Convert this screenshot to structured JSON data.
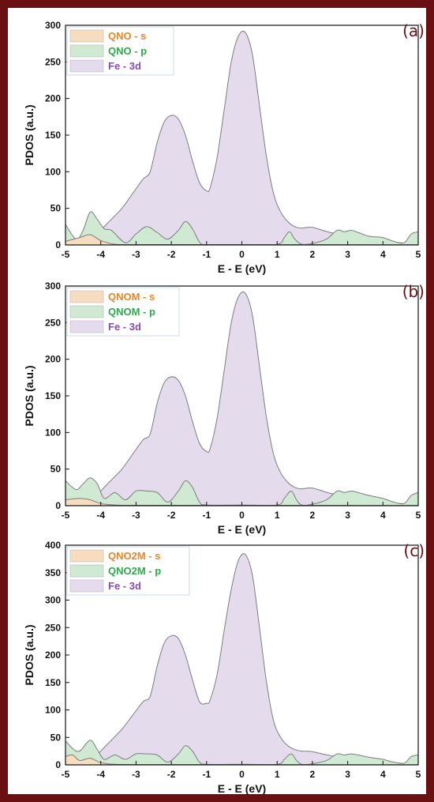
{
  "colors": {
    "frame": "#6a0f12",
    "s_fill": "#f7ddc0",
    "s_text": "#e8872a",
    "p_fill": "#cfe9d3",
    "p_text": "#2eaa4a",
    "d_fill": "#e4dcec",
    "d_text": "#8a4ab5",
    "stroke": "#7d7d7d"
  },
  "x_tick_labels": [
    "-5",
    "-4",
    "-3",
    "-2",
    "-1",
    "0",
    "1",
    "2",
    "3",
    "4",
    "5"
  ],
  "chart_data": [
    {
      "type": "area",
      "panel_label": "(a)",
      "xlabel": "E - E (eV)",
      "ylabel": "PDOS (a.u.)",
      "xlim": [
        -5,
        5
      ],
      "ylim": [
        0,
        300
      ],
      "yticks": [
        0,
        50,
        100,
        150,
        200,
        250,
        300
      ],
      "series": [
        {
          "name": "QNO - s",
          "kind": "s",
          "x": [
            -5,
            -4.6,
            -4.3,
            -4.0,
            -3.6,
            -3,
            -2.5,
            -2,
            -1.5,
            5
          ],
          "y": [
            5,
            10,
            14,
            6,
            1,
            0.5,
            0.5,
            0.5,
            0.5,
            0.2
          ]
        },
        {
          "name": "QNO - p",
          "kind": "p",
          "x": [
            -5,
            -4.7,
            -4.5,
            -4.3,
            -4.1,
            -3.9,
            -3.7,
            -3.3,
            -3.0,
            -2.7,
            -2.4,
            -2.1,
            -1.8,
            -1.6,
            -1.4,
            -1.2,
            -1.0,
            0,
            1.0,
            1.2,
            1.35,
            1.5,
            1.7,
            2.0,
            2.4,
            2.7,
            2.9,
            3.1,
            3.3,
            3.6,
            4.0,
            4.3,
            4.6,
            4.8,
            5.0
          ],
          "y": [
            28,
            8,
            20,
            45,
            35,
            22,
            20,
            3,
            15,
            25,
            17,
            8,
            20,
            32,
            22,
            4,
            0.5,
            0.5,
            1,
            10,
            18,
            8,
            1,
            2,
            8,
            20,
            18,
            20,
            17,
            12,
            10,
            5,
            3,
            15,
            18
          ]
        },
        {
          "name": "Fe - 3d",
          "kind": "d",
          "x": [
            -5,
            -4.5,
            -4.2,
            -4.0,
            -3.7,
            -3.4,
            -3.1,
            -2.8,
            -2.6,
            -2.4,
            -2.2,
            -2.0,
            -1.8,
            -1.6,
            -1.4,
            -1.2,
            -1.0,
            -0.9,
            -0.7,
            -0.5,
            -0.3,
            -0.1,
            0.1,
            0.3,
            0.5,
            0.7,
            0.9,
            1.1,
            1.3,
            1.5,
            1.7,
            2.0,
            2.5,
            3.0,
            3.5,
            4.0,
            4.5,
            5.0
          ],
          "y": [
            3,
            4,
            8,
            20,
            35,
            50,
            70,
            90,
            100,
            140,
            168,
            177,
            172,
            150,
            115,
            85,
            74,
            78,
            120,
            185,
            250,
            285,
            290,
            260,
            190,
            120,
            70,
            45,
            32,
            25,
            23,
            24,
            17,
            13,
            10,
            6,
            3,
            2
          ]
        }
      ]
    },
    {
      "type": "area",
      "panel_label": "(b)",
      "xlabel": "E - E (eV)",
      "ylabel": "PDOS (a.u.)",
      "xlim": [
        -5,
        5
      ],
      "ylim": [
        0,
        300
      ],
      "yticks": [
        0,
        50,
        100,
        150,
        200,
        250,
        300
      ],
      "series": [
        {
          "name": "QNOM - s",
          "kind": "s",
          "x": [
            -5,
            -4.6,
            -4.3,
            -4.0,
            -3.6,
            -3,
            -2.5,
            -2,
            -1.5,
            5
          ],
          "y": [
            8,
            10,
            8,
            3,
            1,
            0.5,
            0.5,
            0.5,
            0.5,
            0.2
          ]
        },
        {
          "name": "QNOM - p",
          "kind": "p",
          "x": [
            -5,
            -4.7,
            -4.5,
            -4.3,
            -4.1,
            -3.9,
            -3.6,
            -3.3,
            -3.0,
            -2.7,
            -2.4,
            -2.1,
            -1.8,
            -1.6,
            -1.4,
            -1.2,
            -1.0,
            0,
            1.0,
            1.2,
            1.4,
            1.55,
            1.7,
            2.0,
            2.4,
            2.7,
            2.9,
            3.1,
            3.3,
            3.6,
            4.0,
            4.3,
            4.6,
            4.8,
            5.0
          ],
          "y": [
            34,
            22,
            30,
            38,
            30,
            10,
            18,
            8,
            20,
            20,
            18,
            5,
            20,
            34,
            25,
            5,
            1,
            1,
            1,
            10,
            20,
            8,
            1,
            2,
            8,
            20,
            18,
            20,
            18,
            14,
            10,
            5,
            3,
            14,
            18
          ]
        },
        {
          "name": "Fe - 3d",
          "kind": "d",
          "x": [
            -5,
            -4.5,
            -4.2,
            -4.0,
            -3.7,
            -3.4,
            -3.1,
            -2.8,
            -2.6,
            -2.4,
            -2.2,
            -2.0,
            -1.8,
            -1.6,
            -1.4,
            -1.2,
            -1.0,
            -0.9,
            -0.7,
            -0.5,
            -0.3,
            -0.1,
            0.1,
            0.3,
            0.5,
            0.7,
            0.9,
            1.1,
            1.3,
            1.5,
            1.7,
            2.0,
            2.5,
            3.0,
            3.5,
            4.0,
            4.5,
            5.0
          ],
          "y": [
            3,
            4,
            8,
            20,
            35,
            50,
            70,
            90,
            98,
            140,
            168,
            176,
            171,
            150,
            115,
            85,
            74,
            78,
            120,
            185,
            250,
            285,
            290,
            260,
            190,
            120,
            70,
            45,
            32,
            25,
            23,
            24,
            17,
            13,
            10,
            6,
            3,
            2
          ]
        }
      ]
    },
    {
      "type": "area",
      "panel_label": "(c)",
      "xlabel": "E - E (eV)",
      "ylabel": "PDOS (a.u.)",
      "xlim": [
        -5,
        5
      ],
      "ylim": [
        0,
        400
      ],
      "yticks": [
        0,
        50,
        100,
        150,
        200,
        250,
        300,
        350,
        400
      ],
      "series": [
        {
          "name": "QNO2M - s",
          "kind": "s",
          "x": [
            -5,
            -4.8,
            -4.6,
            -4.3,
            -4.0,
            -3.6,
            -3,
            -2.5,
            -2,
            -1.5,
            5
          ],
          "y": [
            15,
            18,
            8,
            12,
            4,
            1,
            0.5,
            0.5,
            0.5,
            0.5,
            0.2
          ]
        },
        {
          "name": "QNO2M - p",
          "kind": "p",
          "x": [
            -5,
            -4.8,
            -4.6,
            -4.3,
            -4.1,
            -3.9,
            -3.6,
            -3.3,
            -3.0,
            -2.7,
            -2.4,
            -2.1,
            -1.8,
            -1.6,
            -1.4,
            -1.2,
            -1.0,
            0,
            1.0,
            1.2,
            1.4,
            1.55,
            1.7,
            2.0,
            2.4,
            2.7,
            2.9,
            3.1,
            3.3,
            3.6,
            4.0,
            4.3,
            4.6,
            4.8,
            5.0
          ],
          "y": [
            44,
            30,
            25,
            45,
            28,
            10,
            18,
            10,
            20,
            20,
            18,
            5,
            20,
            35,
            25,
            5,
            1,
            1,
            1,
            10,
            20,
            8,
            1,
            2,
            8,
            20,
            18,
            20,
            18,
            14,
            10,
            5,
            3,
            15,
            18
          ]
        },
        {
          "name": "Fe - 3d",
          "kind": "d",
          "x": [
            -5,
            -4.5,
            -4.2,
            -4.0,
            -3.7,
            -3.4,
            -3.1,
            -2.8,
            -2.6,
            -2.4,
            -2.2,
            -2.0,
            -1.8,
            -1.6,
            -1.4,
            -1.2,
            -1.0,
            -0.9,
            -0.7,
            -0.5,
            -0.3,
            -0.1,
            0.1,
            0.3,
            0.5,
            0.7,
            0.9,
            1.1,
            1.3,
            1.5,
            1.7,
            2.0,
            2.5,
            3.0,
            3.5,
            4.0,
            4.5,
            5.0
          ],
          "y": [
            3,
            4,
            10,
            25,
            45,
            65,
            90,
            115,
            125,
            180,
            222,
            235,
            230,
            200,
            155,
            115,
            112,
            118,
            165,
            245,
            320,
            372,
            383,
            345,
            250,
            150,
            80,
            50,
            35,
            28,
            25,
            24,
            17,
            13,
            10,
            6,
            3,
            2
          ]
        }
      ]
    }
  ]
}
